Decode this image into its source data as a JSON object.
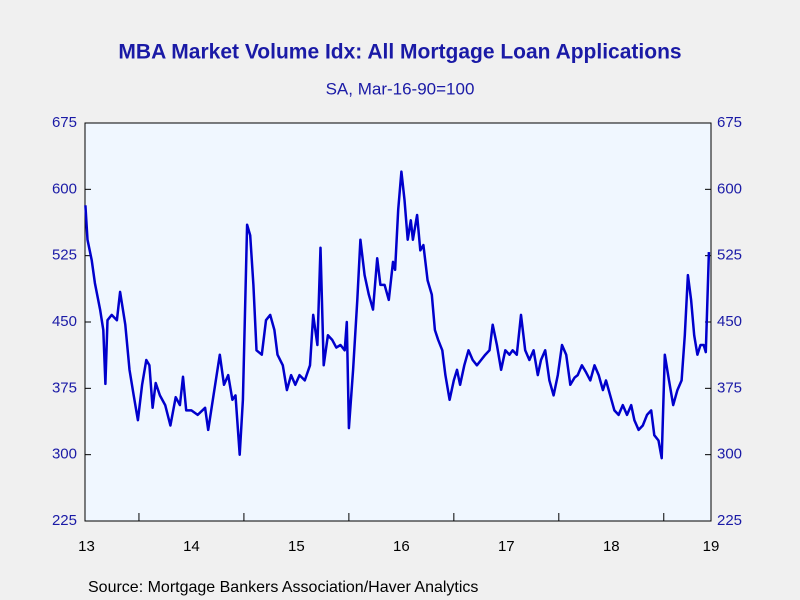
{
  "chart_data": {
    "type": "line",
    "title": "MBA Market Volume Idx: All Mortgage Loan Applications",
    "subtitle": "SA, Mar-16-90=100",
    "source": "Source:  Mortgage Bankers Association/Haver Analytics",
    "color": "#0000cc",
    "x": [
      13.49,
      13.51,
      13.55,
      13.58,
      13.63,
      13.66,
      13.68,
      13.7,
      13.74,
      13.79,
      13.82,
      13.87,
      13.91,
      13.95,
      13.99,
      14.03,
      14.07,
      14.1,
      14.13,
      14.16,
      14.2,
      14.25,
      14.3,
      14.35,
      14.39,
      14.42,
      14.45,
      14.5,
      14.56,
      14.63,
      14.66,
      14.71,
      14.77,
      14.81,
      14.85,
      14.89,
      14.92,
      14.96,
      14.99,
      15.03,
      15.06,
      15.09,
      15.12,
      15.17,
      15.21,
      15.25,
      15.29,
      15.32,
      15.37,
      15.41,
      15.45,
      15.49,
      15.53,
      15.58,
      15.63,
      15.66,
      15.7,
      15.73,
      15.76,
      15.8,
      15.84,
      15.88,
      15.92,
      15.96,
      15.98,
      16.0,
      16.04,
      16.08,
      16.11,
      16.15,
      16.19,
      16.23,
      16.27,
      16.3,
      16.34,
      16.38,
      16.42,
      16.44,
      16.47,
      16.5,
      16.53,
      16.56,
      16.59,
      16.61,
      16.65,
      16.68,
      16.71,
      16.75,
      16.79,
      16.82,
      16.85,
      16.89,
      16.92,
      16.96,
      17.0,
      17.03,
      17.06,
      17.1,
      17.14,
      17.18,
      17.22,
      17.26,
      17.3,
      17.34,
      17.37,
      17.41,
      17.45,
      17.49,
      17.53,
      17.56,
      17.6,
      17.64,
      17.68,
      17.72,
      17.76,
      17.8,
      17.83,
      17.87,
      17.91,
      17.95,
      17.99,
      18.03,
      18.07,
      18.11,
      18.15,
      18.18,
      18.22,
      18.26,
      18.3,
      18.34,
      18.38,
      18.42,
      18.45,
      18.49,
      18.53,
      18.57,
      18.61,
      18.65,
      18.69,
      18.72,
      18.76,
      18.8,
      18.84,
      18.88,
      18.91,
      18.95,
      18.98,
      19.01,
      19.05,
      19.09,
      19.13,
      19.17,
      19.2,
      19.23,
      19.26,
      19.29,
      19.32,
      19.35,
      19.38,
      19.4,
      19.43
    ],
    "values": [
      582,
      543,
      520,
      494,
      464,
      441,
      380,
      452,
      458,
      452,
      484,
      447,
      396,
      367,
      339,
      379,
      407,
      401,
      353,
      381,
      367,
      356,
      333,
      365,
      356,
      388,
      350,
      350,
      345,
      353,
      328,
      367,
      413,
      379,
      390,
      362,
      367,
      300,
      362,
      560,
      548,
      492,
      418,
      413,
      452,
      458,
      441,
      413,
      401,
      373,
      390,
      379,
      390,
      384,
      401,
      458,
      424,
      534,
      401,
      435,
      430,
      421,
      424,
      418,
      450,
      330,
      396,
      475,
      543,
      503,
      481,
      464,
      522,
      492,
      492,
      475,
      518,
      509,
      577,
      620,
      588,
      543,
      565,
      543,
      571,
      531,
      537,
      497,
      481,
      441,
      430,
      418,
      390,
      362,
      384,
      396,
      379,
      401,
      418,
      407,
      401,
      407,
      413,
      418,
      447,
      424,
      396,
      418,
      413,
      418,
      413,
      458,
      418,
      407,
      418,
      390,
      407,
      418,
      384,
      367,
      390,
      424,
      413,
      379,
      387,
      390,
      401,
      393,
      384,
      401,
      390,
      373,
      384,
      367,
      350,
      345,
      356,
      345,
      356,
      339,
      328,
      333,
      345,
      350,
      322,
      316,
      296,
      413,
      384,
      356,
      373,
      384,
      435,
      503,
      475,
      435,
      413,
      424,
      424,
      416,
      529
    ],
    "xlim": [
      13.486,
      19.45
    ],
    "xticks": [
      13,
      14,
      15,
      16,
      17,
      18,
      19
    ],
    "ylim": [
      225,
      675
    ],
    "yticks": [
      225,
      300,
      375,
      450,
      525,
      600,
      675
    ]
  }
}
